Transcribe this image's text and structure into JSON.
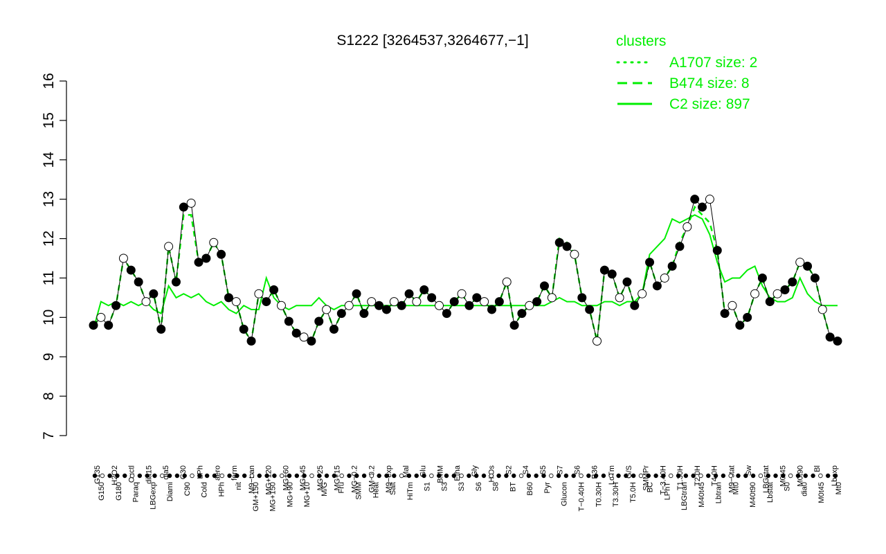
{
  "chart_data": {
    "type": "line",
    "title": "S1222 [3264537,3264677,−1]",
    "xlabel": "",
    "ylabel": "",
    "ylim": [
      7,
      16
    ],
    "yticks": [
      7,
      8,
      9,
      10,
      11,
      12,
      13,
      14,
      15,
      16
    ],
    "grid": false,
    "colors": {
      "series": "#00ee00",
      "points": "#000000",
      "axis": "#000000"
    },
    "legend": {
      "title": "clusters",
      "placement": "top-right",
      "entries": [
        {
          "label": "A1707 size: 2",
          "style": "dotted"
        },
        {
          "label": "B474 size: 8",
          "style": "dashed"
        },
        {
          "label": "C2 size: 897",
          "style": "solid"
        }
      ]
    },
    "x_labels_top": [
      "G135",
      "H2O2",
      "Oxctl",
      "dia15",
      "dia5",
      "C30",
      "LPh",
      "aero",
      "ferm",
      "M9−tran",
      "MG+120",
      "MG+60",
      "MG+45",
      "MG+25",
      "MG+15",
      "MG−0.2",
      "GM−0.2",
      "M9−exp",
      "Mal",
      "Glu",
      "BMM",
      "Etha",
      "Gly",
      "HiOs",
      "S2",
      "S4",
      "S5",
      "S7",
      "S6",
      "B36",
      "LoTm",
      "G/S",
      "SMMPr",
      "T−3.40H",
      "T1.30H",
      "T2.0H",
      "T4.0H",
      "M9−stat",
      "Sw",
      "LBGstat",
      "M0t45",
      "M0t90",
      "Bl",
      "Lbexp"
    ],
    "x_labels_bottom": [
      "G150",
      "G180",
      "Paraq",
      "LBGexp",
      "Diami",
      "C90",
      "Cold",
      "HPh",
      "nit",
      "GM+150",
      "MG+150",
      "MG+90",
      "MG+10",
      "M/G",
      "Fru",
      "SMM",
      "Heat",
      "Salt",
      "HiTm",
      "S1",
      "S3",
      "S3",
      "S6",
      "S8",
      "BT",
      "B60",
      "Pyr",
      "Glucon",
      "T−0.40H",
      "T0.30H",
      "T3.30H",
      "T5.0H",
      "BC",
      "LPhT",
      "LBGtran",
      "M40t45",
      "Lbtran",
      "Mt0",
      "M40t90",
      "Lbstat",
      "S0",
      "dia0",
      "M0t45",
      "Mt0"
    ],
    "series": [
      {
        "name": "",
        "x": [
          1,
          2,
          3,
          4,
          5,
          6,
          7,
          8,
          9,
          10,
          11,
          12,
          13,
          14,
          15,
          16,
          17,
          18,
          19,
          20,
          21,
          22,
          23,
          24,
          25,
          26,
          27,
          28,
          29,
          30,
          31,
          32,
          33,
          34,
          35,
          36,
          37,
          38,
          39,
          40,
          41,
          42,
          43,
          44,
          45,
          46,
          47,
          48,
          49,
          50,
          51,
          52,
          53,
          54,
          55,
          56,
          57,
          58,
          59,
          60,
          61,
          62,
          63,
          64,
          65,
          66,
          67,
          68,
          69,
          70,
          71,
          72,
          73,
          74,
          75,
          76,
          77,
          78,
          79,
          80,
          81,
          82,
          83,
          84,
          85,
          86,
          87,
          88,
          89,
          90,
          91,
          92,
          93,
          94,
          95,
          96,
          97,
          98,
          99,
          100
        ],
        "values": [
          9.8,
          10.0,
          9.8,
          10.3,
          11.5,
          11.2,
          10.9,
          10.4,
          10.6,
          9.7,
          11.8,
          10.9,
          12.8,
          12.9,
          11.4,
          11.5,
          11.9,
          11.6,
          10.5,
          10.4,
          9.7,
          9.4,
          10.6,
          10.4,
          10.7,
          10.3,
          9.9,
          9.6,
          9.5,
          9.4,
          9.9,
          10.2,
          9.7,
          10.1,
          10.3,
          10.6,
          10.1,
          10.4,
          10.3,
          10.2,
          10.4,
          10.3,
          10.6,
          10.4,
          10.7,
          10.5,
          10.3,
          10.1,
          10.4,
          10.6,
          10.3,
          10.5,
          10.4,
          10.2,
          10.4,
          10.9,
          9.8,
          10.1,
          10.3,
          10.4,
          10.8,
          10.5,
          11.9,
          11.8,
          11.6,
          10.5,
          10.2,
          9.4,
          11.2,
          11.1,
          10.5,
          10.9,
          10.3,
          10.6,
          11.4,
          10.8,
          11.0,
          11.3,
          11.8,
          12.3,
          13.0,
          12.8,
          13.0,
          11.7,
          10.1,
          10.3,
          9.8,
          10.0,
          10.6,
          11.0,
          10.4,
          10.6,
          10.7,
          10.9,
          11.4,
          11.3,
          11.0,
          10.2,
          9.5,
          9.4
        ]
      }
    ],
    "reference_lines": [
      {
        "style": "solid",
        "values": [
          9.7,
          10.4,
          10.3,
          10.4,
          10.3,
          10.4,
          10.3,
          10.4,
          10.2,
          10.1,
          10.8,
          10.5,
          10.6,
          10.5,
          10.6,
          10.4,
          10.3,
          10.4,
          10.2,
          10.1,
          10.3,
          10.2,
          10.2,
          11.0,
          10.5,
          10.3,
          10.2,
          10.3,
          10.3,
          10.3,
          10.5,
          10.3,
          10.2,
          10.3,
          10.3,
          10.3,
          10.3,
          10.3,
          10.3,
          10.3,
          10.3,
          10.3,
          10.3,
          10.3,
          10.3,
          10.3,
          10.3,
          10.3,
          10.3,
          10.3,
          10.3,
          10.3,
          10.3,
          10.3,
          10.3,
          10.3,
          10.3,
          10.3,
          10.3,
          10.3,
          10.3,
          10.4,
          10.5,
          10.4,
          10.4,
          10.3,
          10.3,
          10.3,
          10.4,
          10.4,
          10.3,
          10.4,
          10.4,
          10.6,
          11.6,
          11.8,
          12.0,
          12.5,
          12.4,
          12.5,
          12.6,
          12.5,
          12.1,
          11.4,
          10.9,
          11.0,
          11.0,
          11.2,
          11.3,
          10.8,
          10.5,
          10.4,
          10.4,
          10.5,
          11.0,
          10.6,
          10.4,
          10.3,
          10.3,
          10.3
        ]
      },
      {
        "style": "dashed",
        "values": [
          9.8,
          10.0,
          9.8,
          10.3,
          11.5,
          11.2,
          10.9,
          10.4,
          10.6,
          9.7,
          11.8,
          10.9,
          12.6,
          12.6,
          11.4,
          11.5,
          11.9,
          11.6,
          10.5,
          10.4,
          9.7,
          9.4,
          10.6,
          10.4,
          10.7,
          10.3,
          9.9,
          9.6,
          9.5,
          9.4,
          9.9,
          10.2,
          9.7,
          10.1,
          10.3,
          10.6,
          10.1,
          10.4,
          10.3,
          10.2,
          10.4,
          10.3,
          10.6,
          10.4,
          10.7,
          10.5,
          10.3,
          10.1,
          10.4,
          10.6,
          10.3,
          10.5,
          10.4,
          10.2,
          10.4,
          10.9,
          9.8,
          10.1,
          10.3,
          10.4,
          10.8,
          10.5,
          12.0,
          11.9,
          11.6,
          10.5,
          10.2,
          9.4,
          11.2,
          11.1,
          10.5,
          10.9,
          10.3,
          10.6,
          11.4,
          10.8,
          11.0,
          11.3,
          11.9,
          12.3,
          12.8,
          12.6,
          12.4,
          11.7,
          10.1,
          10.3,
          9.8,
          10.0,
          10.6,
          11.0,
          10.4,
          10.6,
          10.7,
          10.9,
          11.4,
          11.3,
          11.0,
          10.2,
          9.5,
          9.4
        ]
      }
    ]
  }
}
